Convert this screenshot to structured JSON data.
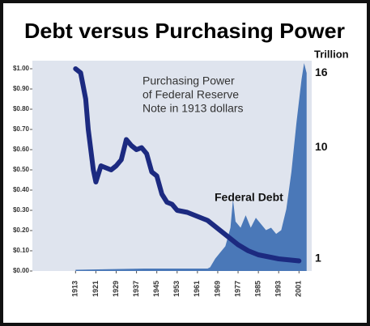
{
  "chart_data": {
    "type": "line",
    "title": "Debt versus Purchasing Power",
    "annotations": [
      "Purchasing Power",
      "of Federal Reserve",
      "Note in 1913 dollars",
      "Federal Debt"
    ],
    "y2_unit": "Trillion",
    "xlim": [
      1896,
      2006
    ],
    "xticks": [
      1913,
      1921,
      1929,
      1937,
      1945,
      1953,
      1961,
      1969,
      1977,
      1985,
      1993,
      2001
    ],
    "ylim": [
      0,
      1.04
    ],
    "yticks": [
      {
        "value": 0,
        "label": "$0.00"
      },
      {
        "value": 0.1,
        "label": "$0.10"
      },
      {
        "value": 0.2,
        "label": "$0.20"
      },
      {
        "value": 0.3,
        "label": "$0.30"
      },
      {
        "value": 0.4,
        "label": "$0.40"
      },
      {
        "value": 0.5,
        "label": "$0.50"
      },
      {
        "value": 0.6,
        "label": "$0.60"
      },
      {
        "value": 0.7,
        "label": "$0.70"
      },
      {
        "value": 0.8,
        "label": "$0.80"
      },
      {
        "value": 0.9,
        "label": "$0.90"
      },
      {
        "value": 1,
        "label": "$1.00"
      }
    ],
    "y2lim": [
      0,
      17
    ],
    "y2ticks": [
      1,
      10,
      16
    ],
    "series": [
      {
        "type": "line",
        "color": "#1c2a80",
        "x": [
          1913,
          1915,
          1917,
          1918,
          1920,
          1921,
          1922,
          1923,
          1925,
          1927,
          1929,
          1931,
          1933,
          1935,
          1937,
          1939,
          1941,
          1943,
          1945,
          1947,
          1949,
          1951,
          1953,
          1957,
          1961,
          1965,
          1969,
          1973,
          1977,
          1981,
          1985,
          1989,
          1993,
          1997,
          2001
        ],
        "values": [
          1.0,
          0.98,
          0.85,
          0.7,
          0.5,
          0.44,
          0.48,
          0.52,
          0.51,
          0.5,
          0.52,
          0.55,
          0.65,
          0.62,
          0.6,
          0.61,
          0.58,
          0.49,
          0.47,
          0.38,
          0.34,
          0.33,
          0.3,
          0.29,
          0.27,
          0.25,
          0.21,
          0.17,
          0.13,
          0.1,
          0.08,
          0.07,
          0.06,
          0.055,
          0.05
        ]
      },
      {
        "type": "area",
        "color": "#4a78b8",
        "axis": "y2",
        "x": [
          1913,
          1940,
          1965,
          1966,
          1968,
          1970,
          1972,
          1974,
          1975,
          1976,
          1978,
          1980,
          1982,
          1984,
          1986,
          1988,
          1990,
          1992,
          1994,
          1996,
          1998,
          2000,
          2002,
          2003,
          2004
        ],
        "values": [
          0.1,
          0.2,
          0.2,
          0.3,
          1.0,
          1.5,
          2.0,
          3.5,
          5.8,
          4.0,
          3.5,
          4.5,
          3.5,
          4.3,
          3.8,
          3.3,
          3.5,
          3.0,
          3.3,
          5.0,
          8.0,
          12.0,
          15.5,
          16.8,
          16.0
        ]
      }
    ]
  }
}
